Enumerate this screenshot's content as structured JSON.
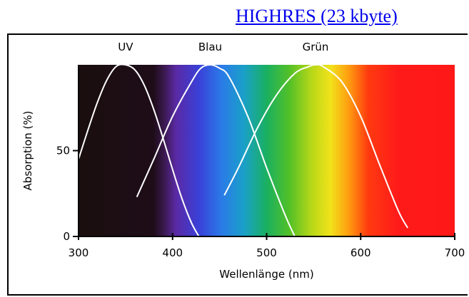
{
  "link": {
    "label": "HIGHRES (23 kbyte)"
  },
  "chart_data": {
    "type": "line",
    "title": "",
    "xlabel": "Wellenlänge (nm)",
    "ylabel": "Absorption (%)",
    "xlim": [
      300,
      700
    ],
    "ylim": [
      0,
      100
    ],
    "xticks": [
      "300",
      "400",
      "500",
      "600",
      "700"
    ],
    "yticks": [
      "0",
      "50"
    ],
    "background": "visible light spectrum",
    "series": [
      {
        "name": "UV",
        "peak_nm": 350,
        "color": "#ffffff",
        "x": [
          300,
          310,
          320,
          330,
          340,
          350,
          360,
          370,
          380,
          390,
          400,
          410,
          420,
          428
        ],
        "y": [
          45,
          62,
          78,
          91,
          99,
          100,
          97,
          88,
          74,
          57,
          39,
          22,
          8,
          0
        ]
      },
      {
        "name": "Blau",
        "peak_nm": 440,
        "color": "#ffffff",
        "x": [
          362,
          380,
          400,
          420,
          430,
          440,
          450,
          460,
          480,
          500,
          520,
          530
        ],
        "y": [
          23,
          45,
          70,
          90,
          98,
          100,
          98,
          93,
          70,
          40,
          12,
          0
        ]
      },
      {
        "name": "Grün",
        "peak_nm": 552,
        "color": "#ffffff",
        "x": [
          455,
          470,
          490,
          510,
          530,
          545,
          552,
          560,
          580,
          600,
          620,
          640,
          650
        ],
        "y": [
          24,
          40,
          63,
          82,
          95,
          99,
          100,
          99,
          90,
          70,
          42,
          15,
          5
        ]
      }
    ]
  }
}
